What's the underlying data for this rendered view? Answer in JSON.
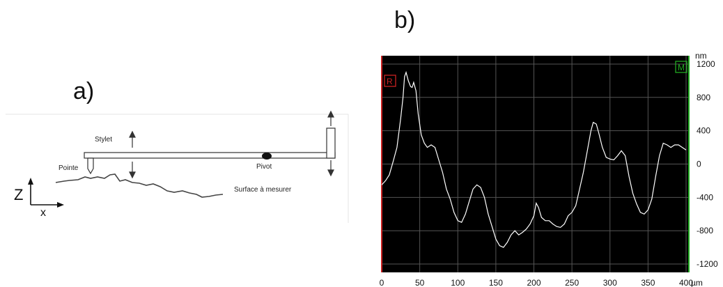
{
  "panel_a": {
    "label": "a)",
    "text": {
      "stylet": "Stylet",
      "pointe": "Pointe",
      "pivot": "Pivot",
      "surface": "Surface à mesurer"
    },
    "axes": {
      "z": "Z",
      "x": "x"
    }
  },
  "panel_b": {
    "label": "b)",
    "marker_left": "R",
    "marker_right": "M"
  },
  "chart_data": {
    "type": "line",
    "title": "",
    "xlabel": "",
    "ylabel": "",
    "x_unit": "µm",
    "y_unit": "nm",
    "xlim": [
      0,
      400
    ],
    "ylim": [
      -1300,
      1300
    ],
    "xticks": [
      0,
      50,
      100,
      150,
      200,
      250,
      300,
      350,
      400
    ],
    "yticks": [
      1200,
      800,
      400,
      0,
      -400,
      -800,
      -1200
    ],
    "grid": true,
    "background": "#000000",
    "line_color": "#ffffff",
    "left_edge_color": "#cc2222",
    "right_edge_color": "#22aa22",
    "series": [
      {
        "values": [
          [
            0,
            -250
          ],
          [
            5,
            -200
          ],
          [
            10,
            -130
          ],
          [
            15,
            30
          ],
          [
            20,
            200
          ],
          [
            25,
            550
          ],
          [
            28,
            800
          ],
          [
            30,
            1050
          ],
          [
            32,
            1100
          ],
          [
            35,
            1000
          ],
          [
            38,
            930
          ],
          [
            40,
            920
          ],
          [
            42,
            980
          ],
          [
            45,
            880
          ],
          [
            48,
            600
          ],
          [
            52,
            350
          ],
          [
            56,
            250
          ],
          [
            60,
            200
          ],
          [
            65,
            230
          ],
          [
            70,
            200
          ],
          [
            75,
            50
          ],
          [
            80,
            -100
          ],
          [
            85,
            -300
          ],
          [
            90,
            -420
          ],
          [
            95,
            -580
          ],
          [
            100,
            -680
          ],
          [
            105,
            -700
          ],
          [
            110,
            -600
          ],
          [
            115,
            -450
          ],
          [
            120,
            -300
          ],
          [
            125,
            -250
          ],
          [
            130,
            -280
          ],
          [
            135,
            -400
          ],
          [
            140,
            -600
          ],
          [
            145,
            -750
          ],
          [
            150,
            -900
          ],
          [
            155,
            -980
          ],
          [
            160,
            -1000
          ],
          [
            165,
            -940
          ],
          [
            170,
            -850
          ],
          [
            175,
            -800
          ],
          [
            180,
            -850
          ],
          [
            185,
            -820
          ],
          [
            190,
            -780
          ],
          [
            195,
            -720
          ],
          [
            200,
            -620
          ],
          [
            203,
            -470
          ],
          [
            206,
            -520
          ],
          [
            210,
            -640
          ],
          [
            215,
            -680
          ],
          [
            220,
            -680
          ],
          [
            225,
            -720
          ],
          [
            230,
            -750
          ],
          [
            235,
            -760
          ],
          [
            240,
            -720
          ],
          [
            245,
            -620
          ],
          [
            250,
            -580
          ],
          [
            255,
            -500
          ],
          [
            260,
            -300
          ],
          [
            265,
            -100
          ],
          [
            270,
            150
          ],
          [
            275,
            400
          ],
          [
            278,
            500
          ],
          [
            282,
            480
          ],
          [
            285,
            380
          ],
          [
            290,
            200
          ],
          [
            295,
            80
          ],
          [
            300,
            60
          ],
          [
            305,
            50
          ],
          [
            310,
            100
          ],
          [
            315,
            160
          ],
          [
            320,
            100
          ],
          [
            325,
            -150
          ],
          [
            330,
            -350
          ],
          [
            335,
            -480
          ],
          [
            340,
            -580
          ],
          [
            345,
            -600
          ],
          [
            350,
            -550
          ],
          [
            355,
            -420
          ],
          [
            360,
            -150
          ],
          [
            365,
            100
          ],
          [
            370,
            250
          ],
          [
            375,
            230
          ],
          [
            380,
            200
          ],
          [
            385,
            230
          ],
          [
            390,
            230
          ],
          [
            395,
            200
          ],
          [
            400,
            170
          ]
        ]
      }
    ]
  }
}
